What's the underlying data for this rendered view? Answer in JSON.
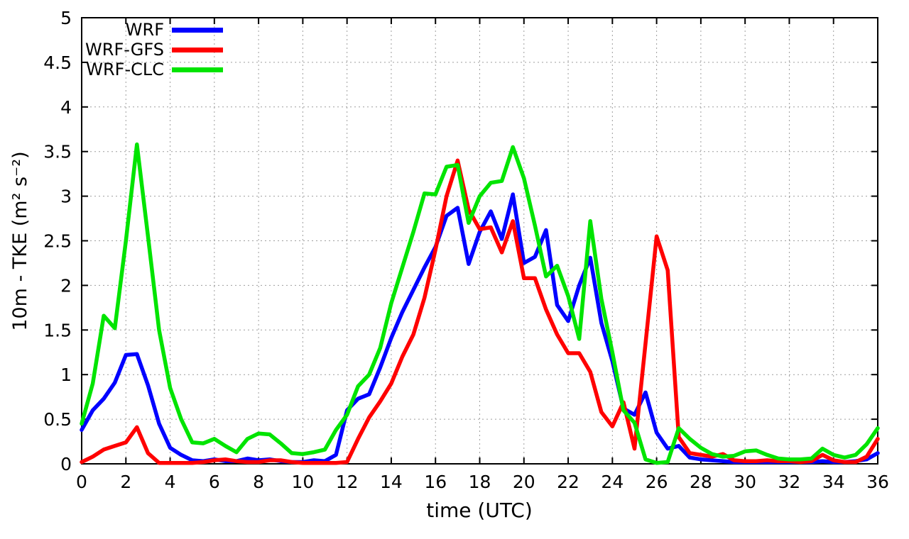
{
  "figure": {
    "title": "",
    "xlabel": "time (UTC)",
    "ylabel": "10m - TKE (m² s⁻²)",
    "background_color": "#ffffff",
    "grid_color": "#9e9e9e",
    "axis_color": "#000000"
  },
  "legend": [
    {
      "label": "WRF",
      "color": "#0000ff"
    },
    {
      "label": "WRF-GFS",
      "color": "#ff0000"
    },
    {
      "label": "WRF-CLC",
      "color": "#00e400"
    }
  ],
  "chart_data": {
    "type": "line",
    "title": "",
    "xlabel": "time (UTC)",
    "ylabel": "10m - TKE (m^2 s^-2)",
    "xlim": [
      0,
      36
    ],
    "ylim": [
      0,
      5
    ],
    "grid": true,
    "legend_position": "top-left",
    "xticks": {
      "values": [
        0,
        2,
        4,
        6,
        8,
        10,
        12,
        14,
        16,
        18,
        20,
        22,
        24,
        26,
        28,
        30,
        32,
        34,
        36
      ],
      "labels": [
        "0",
        "2",
        "4",
        "6",
        "8",
        "10",
        "12",
        "14",
        "16",
        "18",
        "20",
        "22",
        "24",
        "26",
        "28",
        "30",
        "32",
        "34",
        "36"
      ]
    },
    "yticks": {
      "values": [
        0,
        0.5,
        1,
        1.5,
        2,
        2.5,
        3,
        3.5,
        4,
        4.5,
        5
      ],
      "labels": [
        "0",
        "0.5",
        "1",
        "1.5",
        "2",
        "2.5",
        "3",
        "3.5",
        "4",
        "4.5",
        "5"
      ]
    },
    "x": [
      0,
      0.5,
      1,
      1.5,
      2,
      2.5,
      3,
      3.5,
      4,
      4.5,
      5,
      5.5,
      6,
      6.5,
      7,
      7.5,
      8,
      8.5,
      9,
      9.5,
      10,
      10.5,
      11,
      11.5,
      12,
      12.5,
      13,
      13.5,
      14,
      14.5,
      15,
      15.5,
      16,
      16.5,
      17,
      17.5,
      18,
      18.5,
      19,
      19.5,
      20,
      20.5,
      21,
      21.5,
      22,
      22.5,
      23,
      23.5,
      24,
      24.5,
      25,
      25.5,
      26,
      26.5,
      27,
      27.5,
      28,
      28.5,
      29,
      29.5,
      30,
      30.5,
      31,
      31.5,
      32,
      32.5,
      33,
      33.5,
      34,
      34.5,
      35,
      35.5,
      36
    ],
    "series": [
      {
        "name": "WRF",
        "color": "#0000ff",
        "values": [
          0.38,
          0.6,
          0.73,
          0.91,
          1.22,
          1.23,
          0.88,
          0.45,
          0.18,
          0.1,
          0.04,
          0.03,
          0.05,
          0.03,
          0.03,
          0.06,
          0.04,
          0.05,
          0.03,
          0.02,
          0.02,
          0.04,
          0.03,
          0.1,
          0.6,
          0.73,
          0.78,
          1.08,
          1.41,
          1.7,
          1.95,
          2.2,
          2.43,
          2.78,
          2.87,
          2.24,
          2.6,
          2.83,
          2.52,
          3.02,
          2.25,
          2.32,
          2.62,
          1.78,
          1.6,
          2.0,
          2.31,
          1.58,
          1.15,
          0.62,
          0.55,
          0.8,
          0.35,
          0.17,
          0.2,
          0.07,
          0.05,
          0.04,
          0.03,
          0.02,
          0.02,
          0.02,
          0.02,
          0.02,
          0.02,
          0.02,
          0.02,
          0.03,
          0.02,
          0.02,
          0.03,
          0.05,
          0.12
        ]
      },
      {
        "name": "WRF-GFS",
        "color": "#ff0000",
        "values": [
          0.02,
          0.08,
          0.16,
          0.2,
          0.24,
          0.41,
          0.12,
          0.01,
          0.01,
          0.01,
          0.01,
          0.02,
          0.04,
          0.05,
          0.03,
          0.02,
          0.02,
          0.04,
          0.04,
          0.02,
          0.01,
          0.01,
          0.01,
          0.01,
          0.02,
          0.28,
          0.52,
          0.7,
          0.9,
          1.2,
          1.45,
          1.86,
          2.4,
          3.0,
          3.4,
          2.85,
          2.63,
          2.65,
          2.37,
          2.72,
          2.08,
          2.08,
          1.73,
          1.45,
          1.24,
          1.24,
          1.03,
          0.58,
          0.42,
          0.69,
          0.17,
          1.35,
          2.55,
          2.17,
          0.3,
          0.12,
          0.1,
          0.08,
          0.11,
          0.04,
          0.03,
          0.03,
          0.04,
          0.03,
          0.03,
          0.02,
          0.03,
          0.1,
          0.04,
          0.02,
          0.02,
          0.08,
          0.28
        ]
      },
      {
        "name": "WRF-CLC",
        "color": "#00e400",
        "values": [
          0.45,
          0.9,
          1.66,
          1.52,
          2.5,
          3.58,
          2.55,
          1.5,
          0.85,
          0.5,
          0.24,
          0.23,
          0.28,
          0.2,
          0.13,
          0.28,
          0.34,
          0.33,
          0.23,
          0.12,
          0.11,
          0.13,
          0.16,
          0.38,
          0.55,
          0.87,
          1.0,
          1.3,
          1.8,
          2.2,
          2.6,
          3.03,
          3.02,
          3.33,
          3.35,
          2.7,
          3.0,
          3.15,
          3.17,
          3.55,
          3.2,
          2.67,
          2.1,
          2.22,
          1.88,
          1.4,
          2.72,
          1.85,
          1.25,
          0.6,
          0.46,
          0.05,
          0.01,
          0.02,
          0.4,
          0.28,
          0.18,
          0.11,
          0.08,
          0.09,
          0.14,
          0.15,
          0.1,
          0.06,
          0.05,
          0.05,
          0.06,
          0.17,
          0.1,
          0.07,
          0.1,
          0.22,
          0.4
        ]
      }
    ]
  }
}
